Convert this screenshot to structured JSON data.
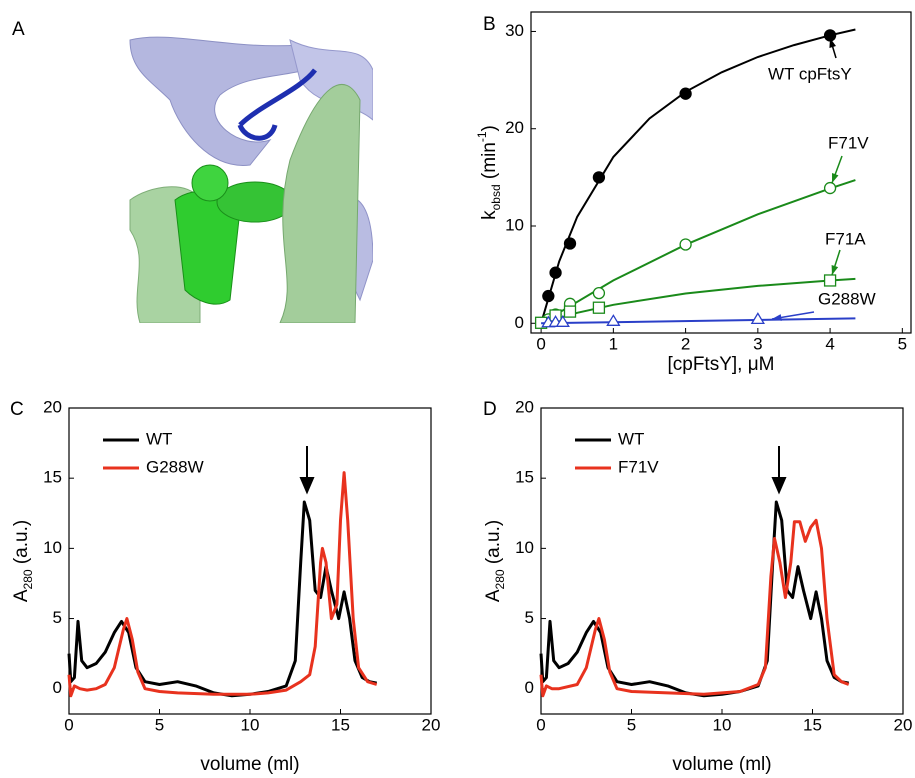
{
  "figure": {
    "panel_labels": [
      "A",
      "B",
      "C",
      "D"
    ]
  },
  "chart_data": [
    {
      "type": "scatter",
      "x_label": "[cpFtsY], μM",
      "y_label": [
        "k",
        "obsd",
        " (min",
        "-1",
        ")"
      ],
      "xlim": [
        -0.14,
        5.12
      ],
      "ylim": [
        -1,
        32
      ],
      "xticks": [
        0,
        1,
        2,
        3,
        4,
        5
      ],
      "yticks": [
        0,
        10,
        20,
        30
      ],
      "series": [
        {
          "name": "WT cpFtsY",
          "color": "#000000",
          "marker": "filled-circle",
          "x": [
            0.1,
            0.2,
            0.4,
            0.8,
            2,
            4
          ],
          "values": [
            2.8,
            5.2,
            8.2,
            15,
            23.6,
            29.6
          ],
          "fit": {
            "x": [
              0,
              0.25,
              0.5,
              1,
              1.5,
              2,
              2.5,
              3,
              3.5,
              4,
              4.35
            ],
            "values": [
              0,
              6.36,
              10.95,
              17.1,
              21.05,
              23.8,
              25.8,
              27.37,
              28.6,
              29.6,
              30.2
            ]
          }
        },
        {
          "name": "F71V",
          "color": "#1a8a1a",
          "marker": "circle",
          "x": [
            0.1,
            0.2,
            0.4,
            0.8,
            2,
            4
          ],
          "values": [
            0.4,
            0.9,
            2.0,
            3.1,
            8.1,
            13.9
          ],
          "fit": {
            "x": [
              0,
              1,
              2,
              3,
              4,
              4.35
            ],
            "values": [
              0,
              4.41,
              8.08,
              11.2,
              13.87,
              14.72
            ]
          }
        },
        {
          "name": "F71A",
          "color": "#1a8a1a",
          "marker": "square",
          "x": [
            0,
            0.2,
            0.4,
            0.8,
            4
          ],
          "values": [
            0.05,
            0.8,
            1.2,
            1.6,
            4.4
          ],
          "fit": {
            "x": [
              0,
              0.5,
              1,
              2,
              3,
              4,
              4.35
            ],
            "values": [
              0,
              1.08,
              1.9,
              3.06,
              3.84,
              4.4,
              4.56
            ]
          }
        },
        {
          "name": "G288W",
          "color": "#2a3fc8",
          "marker": "triangle",
          "x": [
            0.1,
            0.2,
            0.3,
            1,
            3
          ],
          "values": [
            0.05,
            0.1,
            0.1,
            0.2,
            0.4
          ],
          "fit": {
            "x": [
              0,
              4.35
            ],
            "values": [
              0,
              0.5
            ]
          }
        }
      ]
    },
    {
      "type": "line",
      "x_label": "volume (ml)",
      "y_label": [
        "A",
        "280",
        " (a.u.)"
      ],
      "xlim": [
        0,
        20
      ],
      "ylim": [
        -1.8,
        20
      ],
      "xticks": [
        0,
        5,
        10,
        15,
        20
      ],
      "yticks": [
        0,
        5,
        10,
        15,
        20
      ],
      "series": [
        {
          "name": "WT",
          "color": "#000000",
          "x": [
            0,
            0.1,
            0.3,
            0.5,
            0.7,
            1,
            1.5,
            2,
            2.5,
            2.9,
            3.3,
            3.7,
            4.2,
            5,
            6,
            7,
            8,
            9,
            10,
            11,
            12,
            12.5,
            12.8,
            13,
            13.3,
            13.6,
            13.9,
            14.2,
            14.5,
            14.9,
            15.2,
            15.5,
            15.8,
            16.2,
            16.6,
            17
          ],
          "values": [
            2.5,
            0.5,
            0.8,
            4.8,
            2.0,
            1.5,
            1.8,
            2.6,
            4,
            4.8,
            4,
            1.5,
            0.5,
            0.3,
            0.5,
            0.2,
            -0.3,
            -0.5,
            -0.4,
            -0.2,
            0.2,
            2,
            9,
            13.3,
            12,
            7,
            6.5,
            8.7,
            7,
            5,
            6.9,
            5,
            2,
            0.8,
            0.5,
            0.4
          ]
        },
        {
          "name": "G288W",
          "color": "#e8321e",
          "x": [
            0,
            0.1,
            0.3,
            0.6,
            1,
            1.5,
            2,
            2.5,
            3,
            3.2,
            3.5,
            3.8,
            4.2,
            5,
            6,
            8,
            10,
            11,
            12,
            12.8,
            13.3,
            13.6,
            13.9,
            14,
            14.2,
            14.5,
            14.8,
            15,
            15.2,
            15.4,
            15.7,
            16,
            16.5,
            17
          ],
          "values": [
            1,
            -0.5,
            0.2,
            0,
            -0.1,
            0,
            0.3,
            1.5,
            4.2,
            5,
            3.5,
            1.2,
            0,
            -0.2,
            -0.3,
            -0.4,
            -0.4,
            -0.3,
            -0.1,
            0.5,
            1,
            3,
            9,
            10,
            9,
            5,
            6,
            12,
            15.4,
            12,
            5,
            1.5,
            0.5,
            0.3
          ]
        }
      ]
    },
    {
      "type": "line",
      "x_label": "volume (ml)",
      "y_label": [
        "A",
        "280",
        " (a.u.)"
      ],
      "xlim": [
        0,
        20
      ],
      "ylim": [
        -1.8,
        20
      ],
      "xticks": [
        0,
        5,
        10,
        15,
        20
      ],
      "yticks": [
        0,
        5,
        10,
        15,
        20
      ],
      "series": [
        {
          "name": "WT",
          "color": "#000000",
          "x": [
            0,
            0.1,
            0.3,
            0.5,
            0.7,
            1,
            1.5,
            2,
            2.5,
            2.9,
            3.3,
            3.7,
            4.2,
            5,
            6,
            7,
            8,
            9,
            10,
            11,
            12,
            12.5,
            12.8,
            13,
            13.3,
            13.6,
            13.9,
            14.2,
            14.5,
            14.9,
            15.2,
            15.5,
            15.8,
            16.2,
            16.6,
            17
          ],
          "values": [
            2.5,
            0.5,
            0.8,
            4.8,
            2.0,
            1.5,
            1.8,
            2.6,
            4,
            4.8,
            4,
            1.5,
            0.5,
            0.3,
            0.5,
            0.2,
            -0.3,
            -0.5,
            -0.4,
            -0.2,
            0.2,
            2,
            9,
            13.3,
            12,
            7,
            6.5,
            8.7,
            7,
            5,
            6.9,
            5,
            2,
            0.8,
            0.5,
            0.4
          ]
        },
        {
          "name": "F71V",
          "color": "#e8321e",
          "x": [
            0,
            0.1,
            0.3,
            0.6,
            1,
            2,
            2.5,
            3,
            3.2,
            3.5,
            3.8,
            4.2,
            5,
            7,
            9,
            10,
            11,
            12,
            12.4,
            12.7,
            12.9,
            13.2,
            13.5,
            13.8,
            14,
            14.3,
            14.6,
            14.9,
            15.2,
            15.5,
            15.8,
            16.2,
            16.6,
            17
          ],
          "values": [
            1,
            -0.5,
            0.2,
            0,
            0,
            0.3,
            1.5,
            4.2,
            5,
            3.5,
            1.2,
            0,
            -0.2,
            -0.3,
            -0.4,
            -0.3,
            -0.2,
            0.3,
            1.5,
            8,
            10.7,
            9,
            6.5,
            9,
            11.9,
            11.9,
            10.5,
            11.5,
            12,
            10,
            5,
            1,
            0.5,
            0.3
          ]
        }
      ]
    }
  ]
}
